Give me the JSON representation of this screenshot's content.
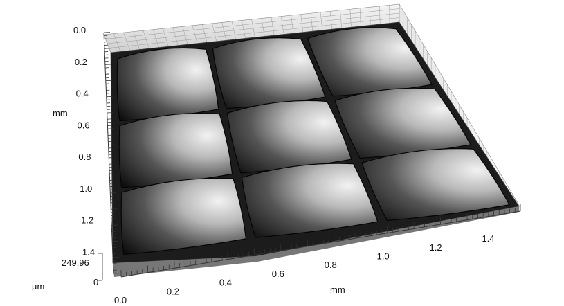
{
  "view": {
    "left_axis": {
      "unit_label": "mm",
      "ticks": [
        "0.0",
        "0.2",
        "0.4",
        "0.6",
        "0.8",
        "1.0",
        "1.2",
        "1.4"
      ]
    },
    "bottom_axis": {
      "unit_label": "mm",
      "ticks": [
        "0.0",
        "0.2",
        "0.4",
        "0.6",
        "0.8",
        "1.0",
        "1.2",
        "1.4"
      ]
    },
    "height_axis": {
      "unit_label": "µm",
      "max_label": "249.96",
      "min_label": "0"
    },
    "surface": {
      "rows": 3,
      "cols": 3,
      "colors": {
        "light": "#f2f2f2",
        "mid": "#8a8a8a",
        "dark": "#0e0e0e",
        "wall": "#dcdcdc"
      }
    }
  }
}
